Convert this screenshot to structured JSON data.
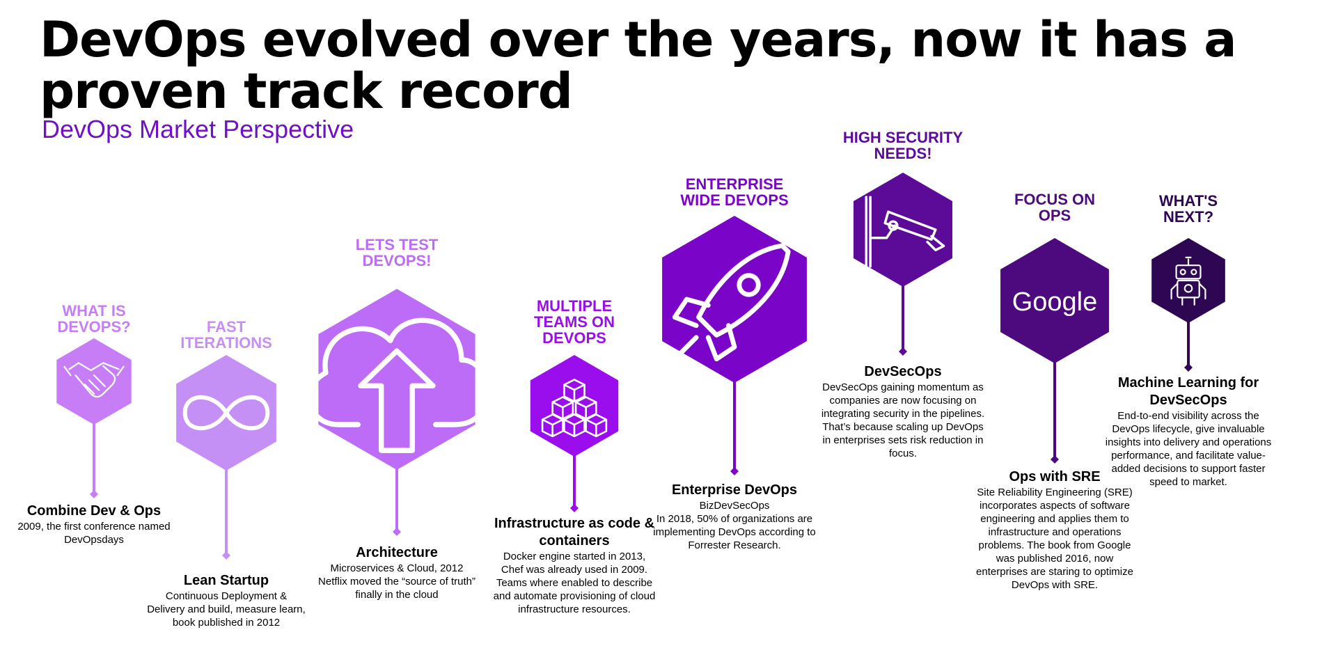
{
  "title": "DevOps evolved over the years, now it has a proven track record",
  "subtitle": "DevOps Market Perspective",
  "stages": [
    {
      "header": "WHAT IS DEVOPS?",
      "icon": "handshake-icon",
      "color": "#c77df5",
      "heading": "Combine Dev & Ops",
      "body": "2009, the first conference named DevOpsdays"
    },
    {
      "header": "FAST ITERATIONS",
      "icon": "infinity-icon",
      "color": "#c590f5",
      "heading": "Lean Startup",
      "body": "Continuous Deployment & Delivery and build, measure learn, book published in 2012"
    },
    {
      "header": "LETS TEST DEVOPS!",
      "icon": "cloud-upload-icon",
      "color": "#bd6cf7",
      "heading": "Architecture",
      "body": "Microservices & Cloud, 2012 Netflix moved the “source of truth” finally in the cloud"
    },
    {
      "header": "MULTIPLE TEAMS ON DEVOPS",
      "icon": "containers-icon",
      "color": "#9a0ded",
      "heading": "Infrastructure as code & containers",
      "body": "Docker engine started in 2013, Chef was already used in 2009. Teams where enabled to describe and automate provisioning of cloud infrastructure resources."
    },
    {
      "header": "ENTERPRISE WIDE DEVOPS",
      "icon": "rocket-icon",
      "color": "#7a05c9",
      "heading": "Enterprise DevOps",
      "body": "BizDevSecOps\nIn 2018, 50% of organizations are implementing DevOps according to\nForrester Research."
    },
    {
      "header": "HIGH SECURITY NEEDS!",
      "icon": "security-camera-icon",
      "color": "#5c0a98",
      "heading": "DevSecOps",
      "body": "DevSecOps gaining momentum as companies are now focusing on integrating security in the pipelines. That’s because scaling up DevOps in enterprises sets risk reduction in focus."
    },
    {
      "header": "FOCUS ON OPS",
      "icon": "google-logo",
      "logo_text": "Google",
      "color": "#4c0a7e",
      "heading": "Ops with SRE",
      "body": "Site Reliability Engineering (SRE) incorporates aspects of software engineering and applies them to infrastructure and operations problems. The book from Google was published 2016, now enterprises are staring to optimize DevOps with SRE."
    },
    {
      "header": "WHAT'S NEXT?",
      "icon": "robot-icon",
      "color": "#2e0753",
      "heading": "Machine Learning for DevSecOps",
      "body": "End-to-end visibility across the DevOps lifecycle, give invaluable insights into delivery and operations performance, and facilitate value-added decisions to support faster speed to market."
    }
  ]
}
